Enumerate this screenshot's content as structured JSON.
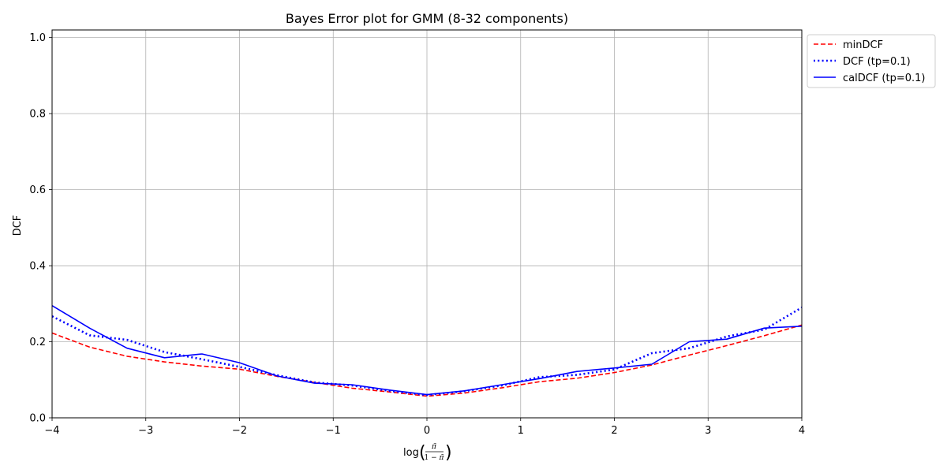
{
  "chart_data": {
    "type": "line",
    "title": "Bayes Error plot for GMM (8-32 components)",
    "xlabel": "log(π̃/(1−π̃))",
    "ylabel": "DCF",
    "xlim": [
      -4,
      4
    ],
    "ylim": [
      0,
      1.02
    ],
    "xticks": [
      -4,
      -3,
      -2,
      -1,
      0,
      1,
      2,
      3,
      4
    ],
    "xtick_labels": [
      "−4",
      "−3",
      "−2",
      "−1",
      "0",
      "1",
      "2",
      "3",
      "4"
    ],
    "yticks": [
      0,
      0.2,
      0.4,
      0.6,
      0.8,
      1.0
    ],
    "ytick_labels": [
      "0.0",
      "0.2",
      "0.4",
      "0.6",
      "0.8",
      "1.0"
    ],
    "grid": true,
    "legend_position": "outside-top-right",
    "series": [
      {
        "name": "minDCF",
        "color": "#ff0000",
        "style": "dashed",
        "x": [
          -4,
          -3.6,
          -3.2,
          -2.8,
          -2.4,
          -2.0,
          -1.6,
          -1.2,
          -0.8,
          -0.4,
          0,
          0.4,
          0.8,
          1.2,
          1.6,
          2.0,
          2.4,
          2.8,
          3.2,
          3.6,
          4.0
        ],
        "y": [
          0.223,
          0.186,
          0.162,
          0.147,
          0.136,
          0.128,
          0.109,
          0.093,
          0.078,
          0.068,
          0.057,
          0.065,
          0.079,
          0.095,
          0.104,
          0.119,
          0.139,
          0.165,
          0.19,
          0.216,
          0.244
        ]
      },
      {
        "name": "DCF (tp=0.1)",
        "color": "#0000ff",
        "style": "dotted",
        "x": [
          -4,
          -3.6,
          -3.2,
          -2.8,
          -2.4,
          -2.0,
          -1.6,
          -1.2,
          -0.8,
          -0.4,
          0,
          0.4,
          0.8,
          1.2,
          1.6,
          2.0,
          2.4,
          2.8,
          3.2,
          3.6,
          4.0
        ],
        "y": [
          0.267,
          0.217,
          0.205,
          0.173,
          0.154,
          0.134,
          0.112,
          0.093,
          0.085,
          0.071,
          0.06,
          0.07,
          0.085,
          0.107,
          0.113,
          0.127,
          0.17,
          0.183,
          0.214,
          0.232,
          0.29
        ]
      },
      {
        "name": "calDCF (tp=0.1)",
        "color": "#0000ff",
        "style": "solid",
        "x": [
          -4,
          -3.6,
          -3.2,
          -2.8,
          -2.4,
          -2.0,
          -1.6,
          -1.2,
          -0.8,
          -0.4,
          0,
          0.4,
          0.8,
          1.2,
          1.6,
          2.0,
          2.4,
          2.8,
          3.2,
          3.6,
          4.0
        ],
        "y": [
          0.295,
          0.236,
          0.183,
          0.158,
          0.168,
          0.145,
          0.11,
          0.091,
          0.087,
          0.073,
          0.061,
          0.071,
          0.087,
          0.103,
          0.122,
          0.131,
          0.141,
          0.2,
          0.207,
          0.236,
          0.241
        ]
      }
    ]
  }
}
